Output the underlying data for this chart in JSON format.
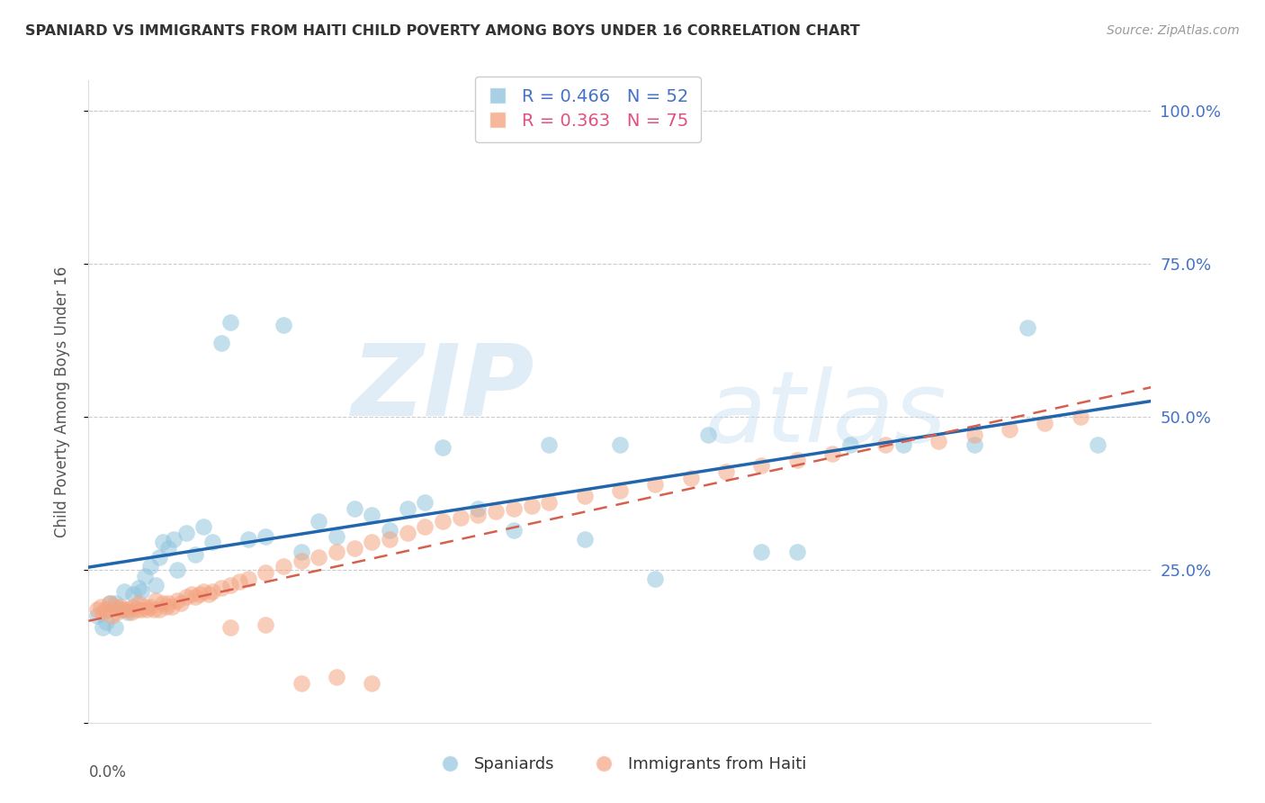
{
  "title": "SPANIARD VS IMMIGRANTS FROM HAITI CHILD POVERTY AMONG BOYS UNDER 16 CORRELATION CHART",
  "source": "Source: ZipAtlas.com",
  "ylabel": "Child Poverty Among Boys Under 16",
  "yticks": [
    0.0,
    0.25,
    0.5,
    0.75,
    1.0
  ],
  "ytick_labels": [
    "",
    "25.0%",
    "50.0%",
    "75.0%",
    "100.0%"
  ],
  "xlim": [
    0.0,
    0.6
  ],
  "ylim": [
    0.0,
    1.05
  ],
  "legend1_label": "R = 0.466   N = 52",
  "legend2_label": "R = 0.363   N = 75",
  "color_blue": "#92c5de",
  "color_pink": "#f4a582",
  "line_blue": "#2166ac",
  "line_pink": "#d6604d",
  "watermark_zip": "ZIP",
  "watermark_atlas": "atlas",
  "legend_label1": "Spaniards",
  "legend_label2": "Immigrants from Haiti",
  "spaniards_x": [
    0.005,
    0.008,
    0.01,
    0.012,
    0.015,
    0.015,
    0.018,
    0.02,
    0.022,
    0.025,
    0.028,
    0.03,
    0.032,
    0.035,
    0.038,
    0.04,
    0.042,
    0.045,
    0.048,
    0.05,
    0.055,
    0.06,
    0.065,
    0.07,
    0.075,
    0.08,
    0.09,
    0.1,
    0.11,
    0.12,
    0.13,
    0.14,
    0.15,
    0.16,
    0.17,
    0.18,
    0.19,
    0.2,
    0.22,
    0.24,
    0.26,
    0.28,
    0.3,
    0.32,
    0.35,
    0.38,
    0.4,
    0.43,
    0.46,
    0.5,
    0.53,
    0.57
  ],
  "spaniards_y": [
    0.175,
    0.155,
    0.165,
    0.195,
    0.155,
    0.195,
    0.185,
    0.215,
    0.18,
    0.21,
    0.22,
    0.215,
    0.24,
    0.255,
    0.225,
    0.27,
    0.295,
    0.285,
    0.3,
    0.25,
    0.31,
    0.275,
    0.32,
    0.295,
    0.62,
    0.655,
    0.3,
    0.305,
    0.65,
    0.28,
    0.33,
    0.305,
    0.35,
    0.34,
    0.315,
    0.35,
    0.36,
    0.45,
    0.35,
    0.315,
    0.455,
    0.3,
    0.455,
    0.235,
    0.47,
    0.28,
    0.28,
    0.455,
    0.455,
    0.455,
    0.645,
    0.455
  ],
  "haiti_x": [
    0.005,
    0.007,
    0.008,
    0.01,
    0.012,
    0.013,
    0.015,
    0.016,
    0.018,
    0.02,
    0.022,
    0.024,
    0.025,
    0.027,
    0.028,
    0.03,
    0.032,
    0.033,
    0.035,
    0.037,
    0.038,
    0.04,
    0.042,
    0.044,
    0.045,
    0.047,
    0.05,
    0.052,
    0.055,
    0.058,
    0.06,
    0.063,
    0.065,
    0.068,
    0.07,
    0.075,
    0.08,
    0.085,
    0.09,
    0.1,
    0.11,
    0.12,
    0.13,
    0.14,
    0.15,
    0.16,
    0.17,
    0.18,
    0.19,
    0.2,
    0.21,
    0.22,
    0.23,
    0.24,
    0.25,
    0.26,
    0.28,
    0.3,
    0.32,
    0.34,
    0.36,
    0.38,
    0.4,
    0.42,
    0.45,
    0.48,
    0.5,
    0.52,
    0.54,
    0.56,
    0.08,
    0.1,
    0.12,
    0.14,
    0.16
  ],
  "haiti_y": [
    0.185,
    0.19,
    0.18,
    0.185,
    0.195,
    0.175,
    0.19,
    0.18,
    0.19,
    0.185,
    0.185,
    0.18,
    0.19,
    0.185,
    0.195,
    0.185,
    0.19,
    0.185,
    0.19,
    0.185,
    0.2,
    0.185,
    0.195,
    0.19,
    0.195,
    0.19,
    0.2,
    0.195,
    0.205,
    0.21,
    0.205,
    0.21,
    0.215,
    0.21,
    0.215,
    0.22,
    0.225,
    0.23,
    0.235,
    0.245,
    0.255,
    0.265,
    0.27,
    0.28,
    0.285,
    0.295,
    0.3,
    0.31,
    0.32,
    0.33,
    0.335,
    0.34,
    0.345,
    0.35,
    0.355,
    0.36,
    0.37,
    0.38,
    0.39,
    0.4,
    0.41,
    0.42,
    0.43,
    0.44,
    0.455,
    0.46,
    0.47,
    0.48,
    0.49,
    0.5,
    0.155,
    0.16,
    0.065,
    0.075,
    0.065
  ]
}
